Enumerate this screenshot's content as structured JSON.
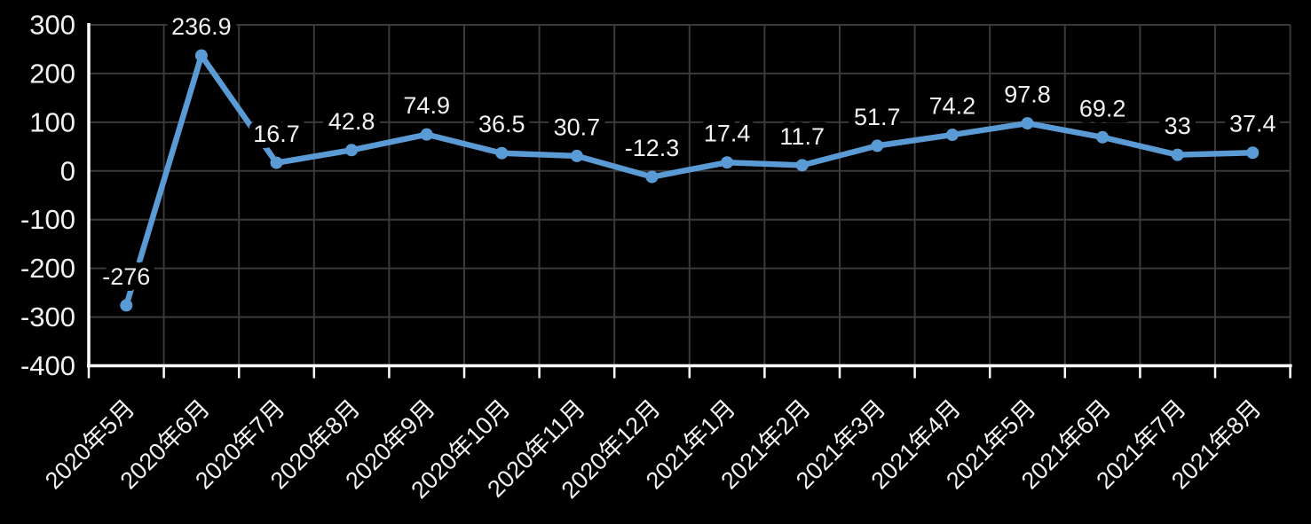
{
  "chart_data": {
    "type": "line",
    "title": "",
    "xlabel": "",
    "ylabel": "",
    "categories": [
      "2020年5月",
      "2020年6月",
      "2020年7月",
      "2020年8月",
      "2020年9月",
      "2020年10月",
      "2020年11月",
      "2020年12月",
      "2021年1月",
      "2021年2月",
      "2021年3月",
      "2021年4月",
      "2021年5月",
      "2021年6月",
      "2021年7月",
      "2021年8月"
    ],
    "values": [
      -276,
      236.9,
      16.7,
      42.8,
      74.9,
      36.5,
      30.7,
      -12.3,
      17.4,
      11.7,
      51.7,
      74.2,
      97.8,
      69.2,
      33,
      37.4
    ],
    "data_labels": [
      "-276",
      "236.9",
      "16.7",
      "42.8",
      "74.9",
      "36.5",
      "30.7",
      "-12.3",
      "17.4",
      "11.7",
      "51.7",
      "74.2",
      "97.8",
      "69.2",
      "33",
      "37.4"
    ],
    "ylim": [
      -400,
      300
    ],
    "yticks": [
      300,
      200,
      100,
      0,
      -100,
      -200,
      -300,
      -400
    ],
    "grid": true,
    "legend": "none",
    "data_label_position": "above",
    "marker": "circle",
    "colors": {
      "line": "#5B9BD5",
      "marker": "#5B9BD5",
      "background": "#000000",
      "gridline": "#3A3A3A",
      "axis": "#FFFFFF",
      "label_text": "#F2F2F2",
      "label_halo": "#000000"
    }
  }
}
